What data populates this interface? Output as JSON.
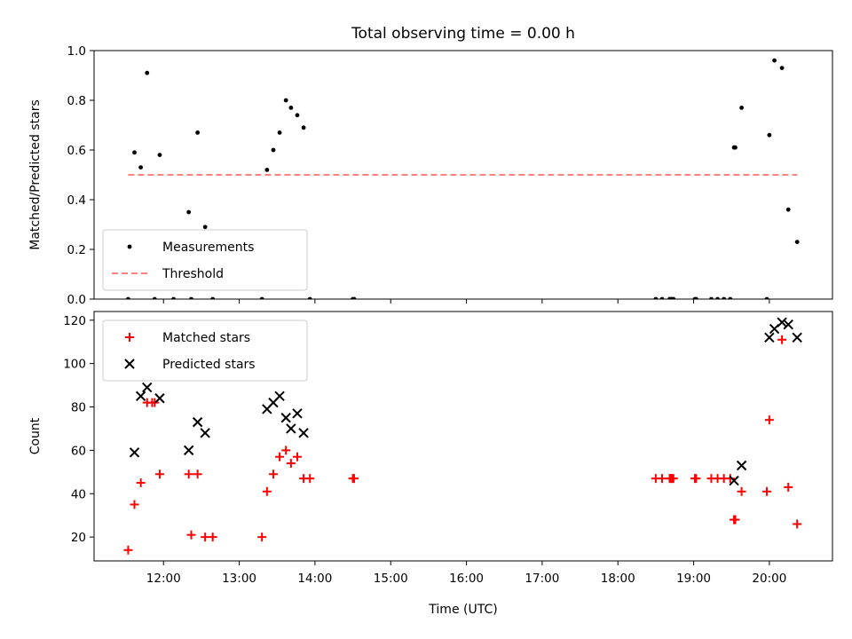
{
  "chart_data": [
    {
      "type": "scatter",
      "title": "Total observing time = 0.00 h",
      "xlabel": "",
      "ylabel": "Matched/Predicted stars",
      "ylim": [
        0,
        1.0
      ],
      "yticks": [
        0.0,
        0.2,
        0.4,
        0.6,
        0.8,
        1.0
      ],
      "ytick_labels": [
        "0.0",
        "0.2",
        "0.4",
        "0.6",
        "0.8",
        "1.0"
      ],
      "legend_position": "lower-left",
      "series": [
        {
          "name": "Measurements",
          "marker": "dot",
          "color": "#000000",
          "x": [
            "11:32",
            "11:37",
            "11:42",
            "11:47",
            "11:53",
            "11:57",
            "12:08",
            "12:20",
            "12:22",
            "12:27",
            "12:33",
            "12:39",
            "13:18",
            "13:22",
            "13:27",
            "13:32",
            "13:37",
            "13:41",
            "13:46",
            "13:51",
            "13:56",
            "14:30",
            "14:31",
            "18:30",
            "18:35",
            "18:41",
            "18:42",
            "18:43",
            "18:44",
            "19:01",
            "19:02",
            "19:14",
            "19:19",
            "19:24",
            "19:29",
            "19:32",
            "19:33",
            "19:38",
            "19:58",
            "20:00",
            "20:04",
            "20:10",
            "20:15",
            "20:22"
          ],
          "y": [
            0.0,
            0.59,
            0.53,
            0.91,
            0.0,
            0.58,
            0.0,
            0.35,
            0.0,
            0.67,
            0.29,
            0.0,
            0.0,
            0.52,
            0.6,
            0.67,
            0.8,
            0.77,
            0.74,
            0.69,
            0.0,
            0.0,
            0.0,
            0.0,
            0.0,
            0.0,
            0.0,
            0.0,
            0.0,
            0.0,
            0.0,
            0.0,
            0.0,
            0.0,
            0.0,
            0.61,
            0.61,
            0.77,
            0.0,
            0.66,
            0.96,
            0.93,
            0.36,
            0.23
          ]
        },
        {
          "name": "Threshold",
          "style": "dashed",
          "color": "#ff8080",
          "x": [
            "11:32",
            "20:22"
          ],
          "y": [
            0.5,
            0.5
          ]
        }
      ]
    },
    {
      "type": "scatter",
      "title": "",
      "xlabel": "Time (UTC)",
      "ylabel": "Count",
      "xlim": [
        "11:05",
        "20:50"
      ],
      "ylim": [
        9,
        124
      ],
      "xticks": [
        "12:00",
        "13:00",
        "14:00",
        "15:00",
        "16:00",
        "17:00",
        "18:00",
        "19:00",
        "20:00"
      ],
      "xtick_labels": [
        "12:00",
        "13:00",
        "14:00",
        "15:00",
        "16:00",
        "17:00",
        "18:00",
        "19:00",
        "20:00"
      ],
      "yticks": [
        20,
        40,
        60,
        80,
        100,
        120
      ],
      "ytick_labels": [
        "20",
        "40",
        "60",
        "80",
        "100",
        "120"
      ],
      "legend_position": "top-left",
      "series": [
        {
          "name": "Matched stars",
          "marker": "plus",
          "color": "#ff0000",
          "x": [
            "11:32",
            "11:37",
            "11:42",
            "11:47",
            "11:51",
            "11:53",
            "11:57",
            "12:20",
            "12:22",
            "12:27",
            "12:33",
            "12:39",
            "13:18",
            "13:22",
            "13:27",
            "13:32",
            "13:37",
            "13:41",
            "13:46",
            "13:51",
            "13:56",
            "14:30",
            "14:31",
            "18:30",
            "18:35",
            "18:41",
            "18:42",
            "18:43",
            "18:44",
            "19:01",
            "19:02",
            "19:14",
            "19:19",
            "19:24",
            "19:29",
            "19:32",
            "19:33",
            "19:38",
            "19:58",
            "20:00",
            "20:10",
            "20:15",
            "20:22"
          ],
          "y": [
            14,
            35,
            45,
            82,
            82,
            82,
            49,
            49,
            21,
            49,
            20,
            20,
            20,
            41,
            49,
            57,
            60,
            54,
            57,
            47,
            47,
            47,
            47,
            47,
            47,
            47,
            47,
            47,
            47,
            47,
            47,
            47,
            47,
            47,
            47,
            28,
            28,
            41,
            41,
            74,
            111,
            43,
            26
          ]
        },
        {
          "name": "Predicted stars",
          "marker": "x",
          "color": "#000000",
          "x": [
            "11:37",
            "11:42",
            "11:47",
            "11:57",
            "12:20",
            "12:27",
            "12:33",
            "13:22",
            "13:27",
            "13:32",
            "13:37",
            "13:41",
            "13:46",
            "13:51",
            "19:32",
            "19:38",
            "20:00",
            "20:04",
            "20:10",
            "20:15",
            "20:22"
          ],
          "y": [
            59,
            85,
            89,
            84,
            60,
            73,
            68,
            79,
            82,
            85,
            75,
            70,
            77,
            68,
            46,
            53,
            112,
            116,
            119,
            118,
            112
          ]
        }
      ]
    }
  ]
}
